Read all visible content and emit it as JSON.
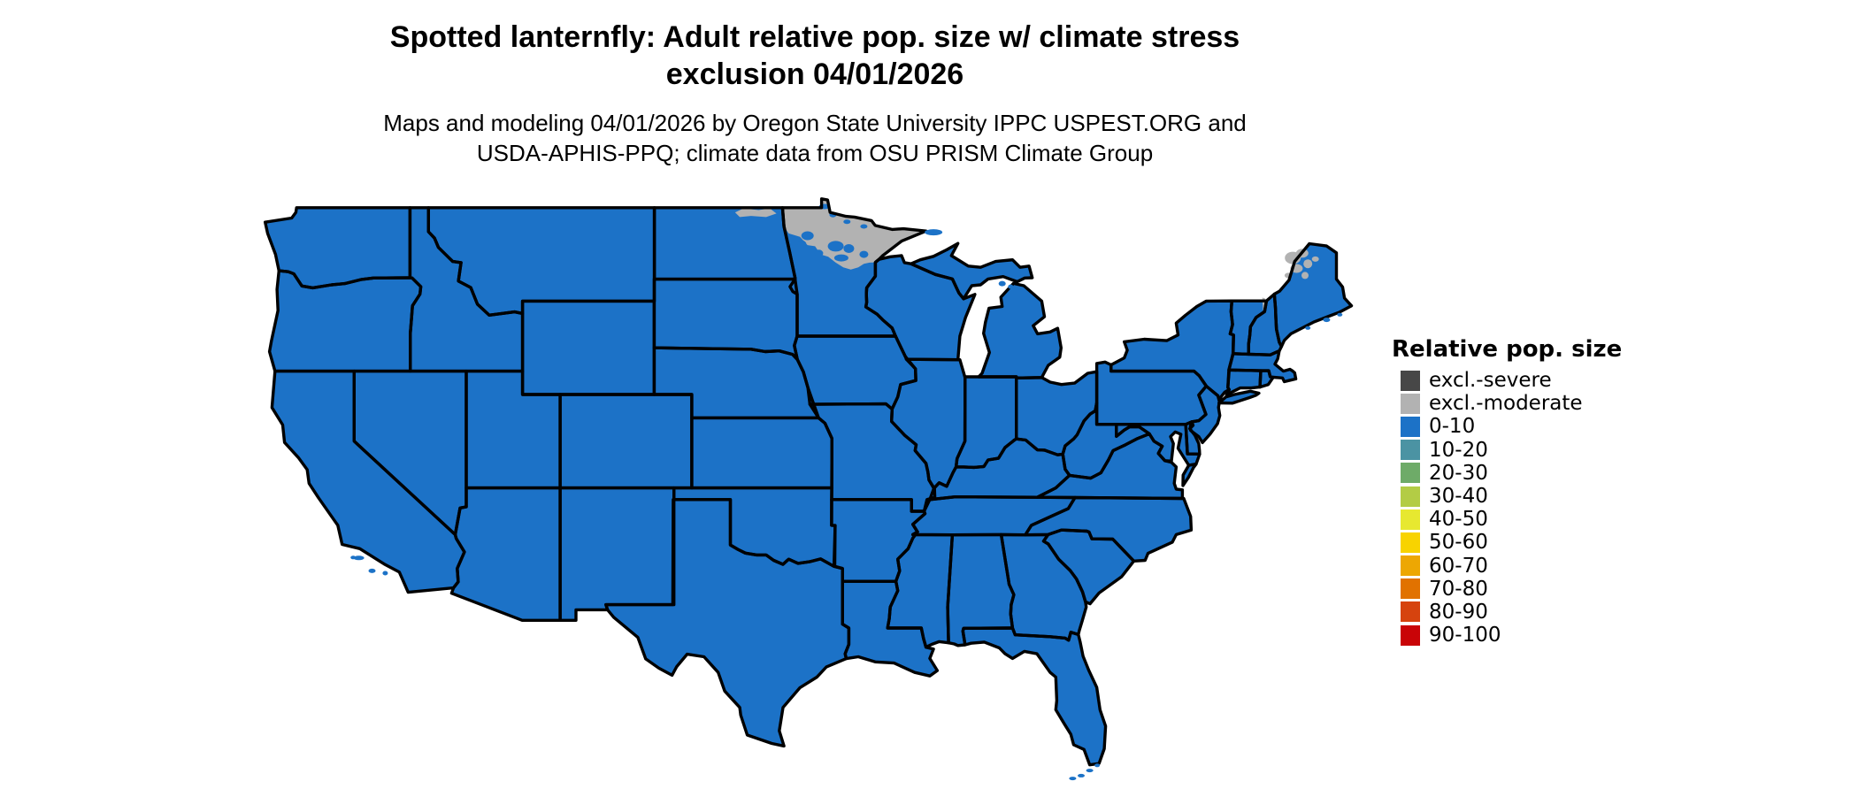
{
  "figure": {
    "title_line1": "Spotted lanternfly: Adult relative pop. size w/ climate stress",
    "title_line2": "exclusion 04/01/2026",
    "subtitle_line1": "Maps and modeling 04/01/2026 by Oregon State University IPPC USPEST.ORG and",
    "subtitle_line2": "USDA-APHIS-PPQ; climate data from OSU PRISM Climate Group"
  },
  "legend": {
    "title": "Relative pop. size",
    "items": [
      {
        "label": "excl.-severe",
        "color": "#474747"
      },
      {
        "label": "excl.-moderate",
        "color": "#B2B2B2"
      },
      {
        "label": "0-10",
        "color": "#1C72C7"
      },
      {
        "label": "10-20",
        "color": "#4B93A3"
      },
      {
        "label": "20-30",
        "color": "#6EAB68"
      },
      {
        "label": "30-40",
        "color": "#B3CC45"
      },
      {
        "label": "40-50",
        "color": "#E7E830"
      },
      {
        "label": "50-60",
        "color": "#F8D300"
      },
      {
        "label": "60-70",
        "color": "#EDA703"
      },
      {
        "label": "70-80",
        "color": "#E17200"
      },
      {
        "label": "80-90",
        "color": "#D6430E"
      },
      {
        "label": "90-100",
        "color": "#C90407"
      }
    ]
  },
  "map": {
    "base_value_class": "0-10",
    "base_color": "#1C72C7",
    "exclusion_moderate_color": "#B2B2B2",
    "state_border_color": "#000000",
    "background_color": "#FFFFFF",
    "excluded_moderate_areas": "northern Minnesota; northeastern North Dakota; northwestern Maine patches; northern New Hampshire strip"
  }
}
